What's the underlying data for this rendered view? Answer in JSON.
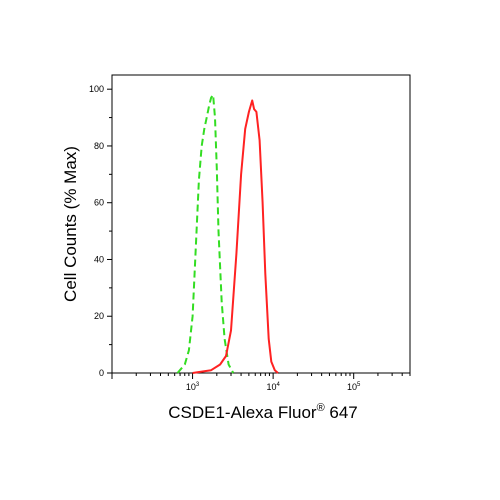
{
  "chart_data": {
    "type": "line",
    "xlabel": "CSDE1-Alexa Fluor",
    "xlabel_superscript": "®",
    "xlabel_suffix": " 647",
    "ylabel": "Cell Counts (% Max)",
    "x_scale": "log",
    "xlim": [
      100,
      500000
    ],
    "ylim": [
      0,
      105
    ],
    "x_tick_labels": [
      {
        "value": 1000,
        "base": "10",
        "exp": "3"
      },
      {
        "value": 10000,
        "base": "10",
        "exp": "4"
      },
      {
        "value": 100000,
        "base": "10",
        "exp": "5"
      }
    ],
    "y_ticks": [
      0,
      20,
      40,
      60,
      80,
      100
    ],
    "grid": false,
    "series": [
      {
        "color": "#33dd22",
        "style": "dashed",
        "x": [
          650,
          800,
          900,
          1000,
          1100,
          1200,
          1300,
          1400,
          1500,
          1600,
          1700,
          1800,
          1900,
          2000,
          2100,
          2300,
          2500,
          2800,
          3200
        ],
        "y": [
          0,
          3,
          8,
          20,
          45,
          68,
          80,
          86,
          90,
          94,
          97,
          98,
          90,
          72,
          50,
          25,
          12,
          3,
          0
        ]
      },
      {
        "color": "#ff2222",
        "style": "solid",
        "x": [
          1000,
          1300,
          1700,
          2200,
          2600,
          3000,
          3500,
          4000,
          4500,
          5000,
          5500,
          5800,
          6200,
          6800,
          7400,
          8000,
          8800,
          9500,
          10500,
          11500
        ],
        "y": [
          0,
          0.5,
          1,
          3,
          6,
          15,
          42,
          70,
          86,
          92,
          96,
          93,
          92,
          82,
          60,
          35,
          12,
          4,
          1,
          0
        ]
      }
    ]
  }
}
